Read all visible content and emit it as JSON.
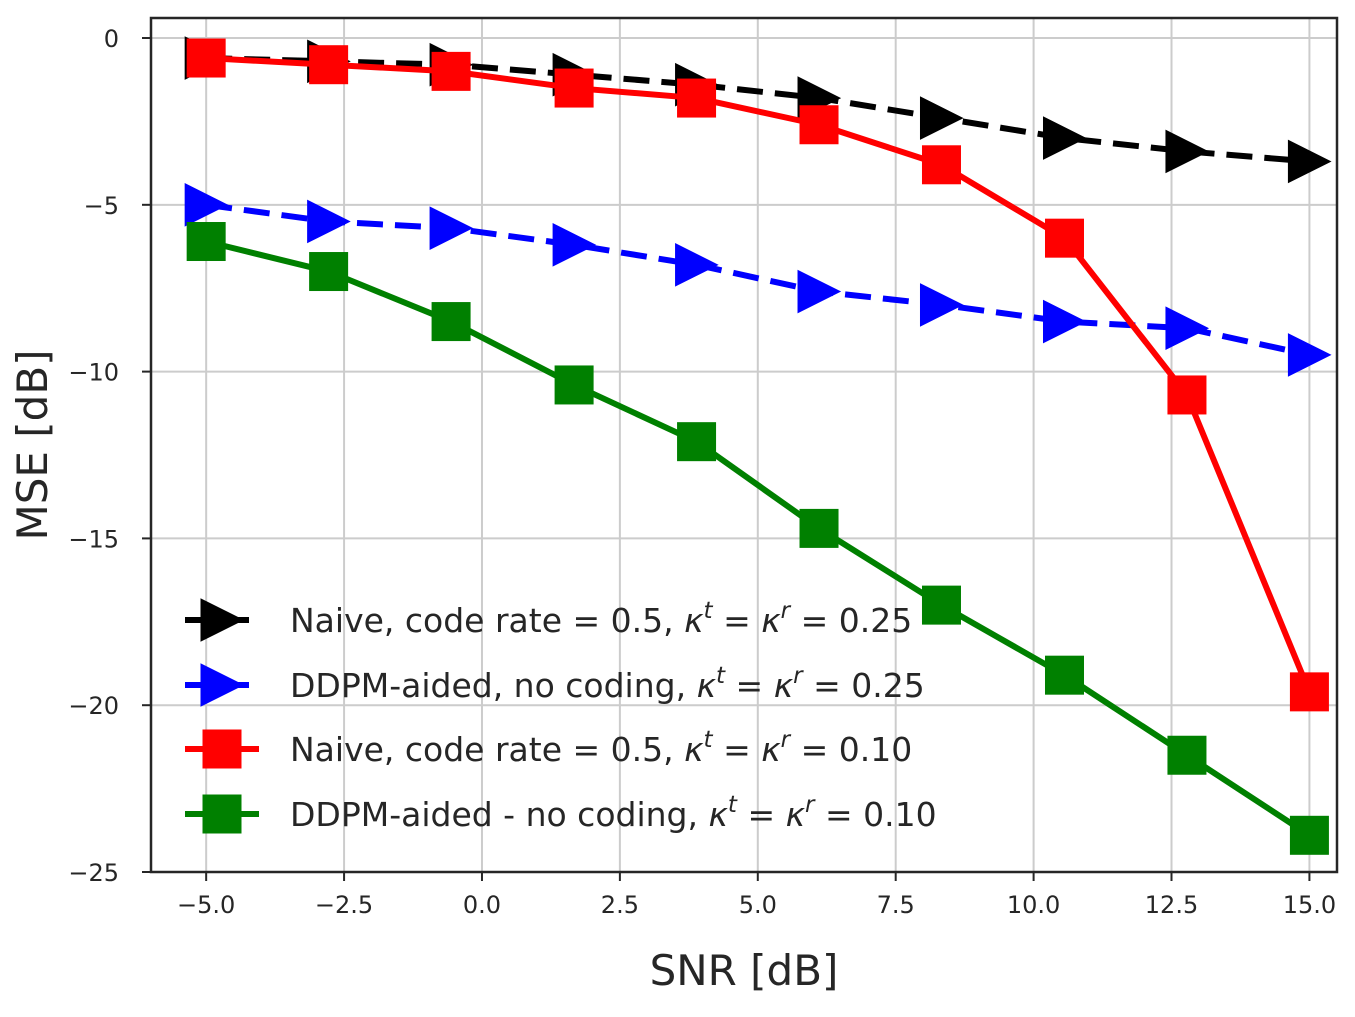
{
  "chart_data": {
    "type": "line",
    "title": "",
    "xlabel": "SNR [dB]",
    "ylabel": "MSE [dB]",
    "xlim": [
      -6.0,
      15.5
    ],
    "ylim": [
      -25,
      0.6
    ],
    "xticks": [
      -5.0,
      -2.5,
      0.0,
      2.5,
      5.0,
      7.5,
      10.0,
      12.5,
      15.0
    ],
    "xtick_labels": [
      "−5.0",
      "−2.5",
      "0.0",
      "2.5",
      "5.0",
      "7.5",
      "10.0",
      "12.5",
      "15.0"
    ],
    "yticks": [
      0,
      -5,
      -10,
      -15,
      -20,
      -25
    ],
    "ytick_labels": [
      "0",
      "−5",
      "−10",
      "−15",
      "−20",
      "−25"
    ],
    "grid": true,
    "legend_position": "lower-left",
    "x": [
      -5.0,
      -2.78,
      -0.56,
      1.67,
      3.89,
      6.11,
      8.33,
      10.56,
      12.78,
      15.0
    ],
    "series": [
      {
        "name": "Naive, code rate = 0.5, κ^t = κ^r = 0.25",
        "legend_label": {
          "prefix": "Naive, code rate = 0.5, ",
          "value": " = 0.25"
        },
        "color": "#000000",
        "line_style": "dashed",
        "marker": "triangle-right",
        "values": [
          -0.6,
          -0.7,
          -0.8,
          -1.1,
          -1.4,
          -1.8,
          -2.4,
          -3.0,
          -3.4,
          -3.7
        ]
      },
      {
        "name": "DDPM-aided, no coding, κ^t = κ^r = 0.25",
        "legend_label": {
          "prefix": "DDPM-aided, no coding, ",
          "value": " = 0.25"
        },
        "color": "#0000ff",
        "line_style": "dashed",
        "marker": "triangle-right",
        "values": [
          -5.0,
          -5.5,
          -5.7,
          -6.2,
          -6.8,
          -7.6,
          -8.0,
          -8.5,
          -8.7,
          -9.5
        ]
      },
      {
        "name": "Naive, code rate = 0.5, κ^t = κ^r = 0.10",
        "legend_label": {
          "prefix": "Naive, code rate = 0.5, ",
          "value": " = 0.10"
        },
        "color": "#ff0000",
        "line_style": "solid",
        "marker": "square",
        "values": [
          -0.6,
          -0.8,
          -1.0,
          -1.5,
          -1.8,
          -2.6,
          -3.8,
          -6.0,
          -10.7,
          -19.6
        ]
      },
      {
        "name": "DDPM-aided - no coding, κ^t = κ^r = 0.10",
        "legend_label": {
          "prefix": "DDPM-aided - no coding, ",
          "value": " = 0.10"
        },
        "color": "#008000",
        "line_style": "solid",
        "marker": "square",
        "values": [
          -6.1,
          -7.0,
          -8.5,
          -10.4,
          -12.1,
          -14.7,
          -17.0,
          -19.1,
          -21.5,
          -23.9
        ]
      }
    ],
    "kappa_math": {
      "kappa": "κ",
      "t": "t",
      "r": "r",
      "eq": " = "
    },
    "colors": {
      "axes": "#262626",
      "grid": "#cccccc",
      "background": "#ffffff"
    }
  }
}
